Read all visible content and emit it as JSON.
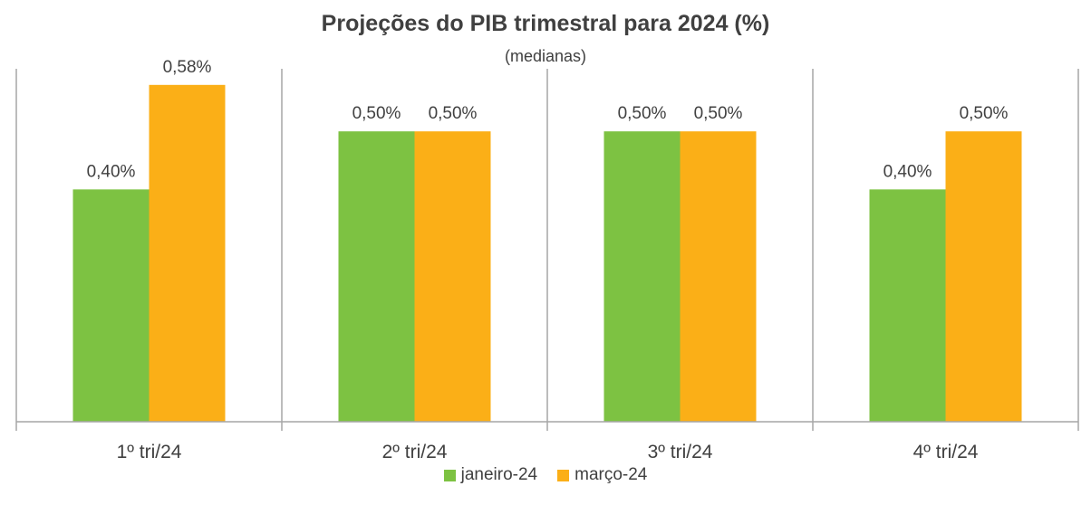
{
  "chart_data": {
    "type": "bar",
    "title": "Projeções do PIB trimestral para 2024 (%)",
    "subtitle": "(medianas)",
    "categories": [
      "1º tri/24",
      "2º tri/24",
      "3º tri/24",
      "4º tri/24"
    ],
    "series": [
      {
        "name": "janeiro-24",
        "color": "#7DC242",
        "values": [
          0.4,
          0.5,
          0.5,
          0.4
        ],
        "labels": [
          "0,40%",
          "0,50%",
          "0,50%",
          "0,40%"
        ]
      },
      {
        "name": "março-24",
        "color": "#FBAF17",
        "values": [
          0.58,
          0.5,
          0.5,
          0.5
        ],
        "labels": [
          "0,58%",
          "0,50%",
          "0,50%",
          "0,50%"
        ]
      }
    ],
    "ylim": [
      0,
      0.7
    ],
    "grid": false,
    "legend_position": "bottom"
  }
}
